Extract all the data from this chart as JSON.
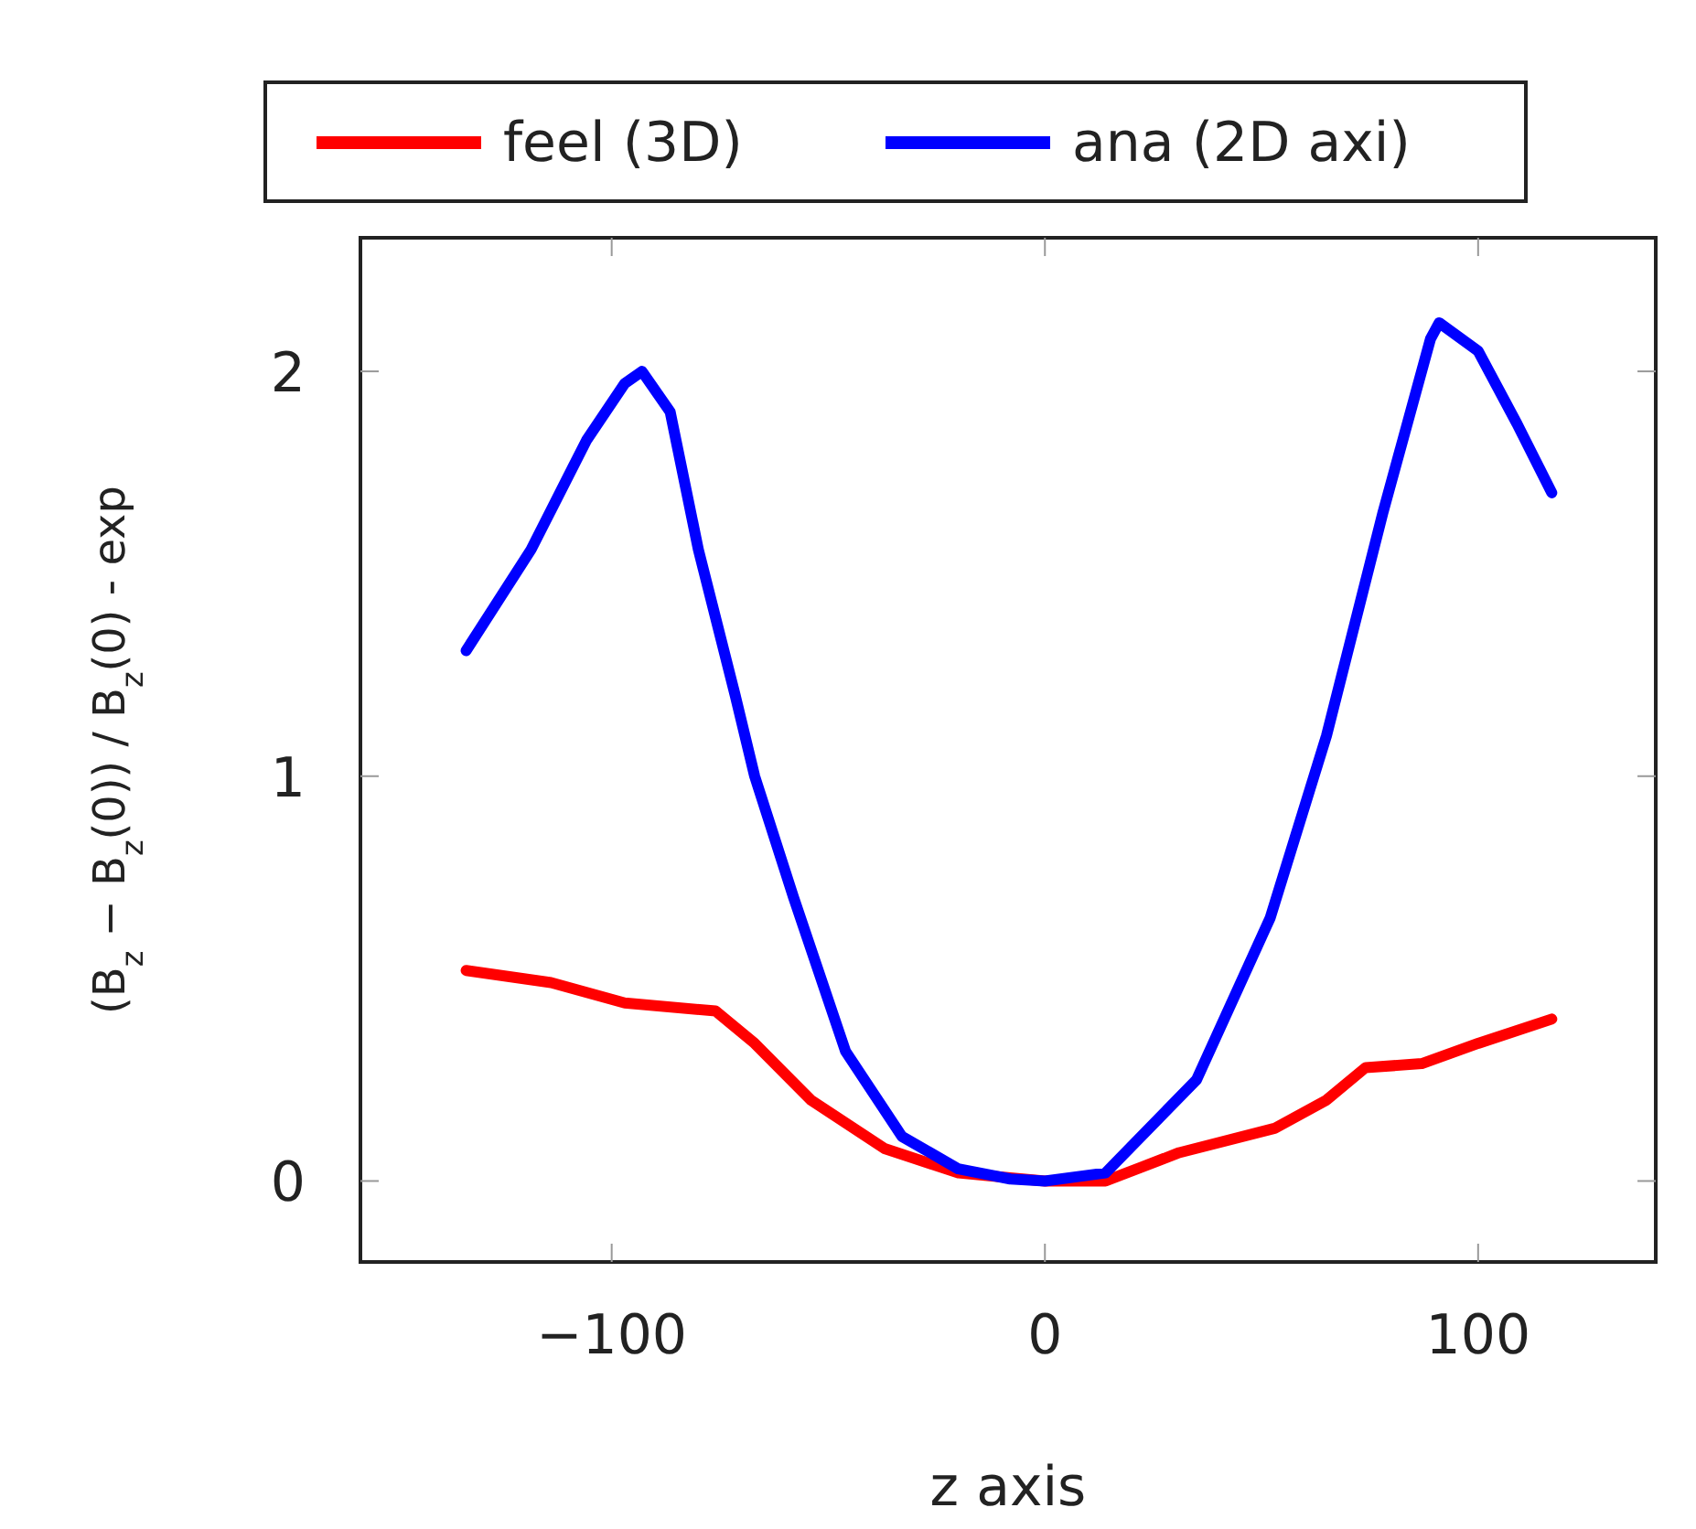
{
  "chart_data": {
    "type": "line",
    "xlabel": "z axis",
    "ylabel": "(B$_{z}$ − B$_{z}$(0)) / B$_{z}$(0) - exp",
    "xlim": [
      -158,
      141
    ],
    "ylim": [
      -0.2,
      2.33
    ],
    "xticks": [
      {
        "value": -100,
        "label": "−100"
      },
      0,
      100
    ],
    "yticks": [
      0,
      1,
      2
    ],
    "legend": "top",
    "marker": "none",
    "line_style": "solid",
    "series": [
      {
        "name": "feel (3D)",
        "color": "#ff0000",
        "x": [
          -133.6,
          -114,
          -97,
          -76,
          -67,
          -54,
          -37,
          -20,
          0,
          14,
          31,
          53,
          65,
          74,
          87,
          100,
          117
        ],
        "values": [
          0.52,
          0.49,
          0.44,
          0.42,
          0.34,
          0.2,
          0.08,
          0.02,
          0,
          0,
          0.07,
          0.13,
          0.2,
          0.28,
          0.29,
          0.34,
          0.4
        ]
      },
      {
        "name": "ana (2D axi)",
        "color": "#0000ff",
        "x": [
          -133.6,
          -118.6,
          -105.8,
          -97,
          -93,
          -86.5,
          -80,
          -71.5,
          -67,
          -58,
          -46,
          -33,
          -20,
          -8,
          0,
          14,
          35,
          52,
          65,
          78,
          89,
          91,
          100,
          109,
          117
        ],
        "values": [
          1.31,
          1.56,
          1.83,
          1.97,
          2.0,
          1.9,
          1.56,
          1.2,
          1.0,
          0.7,
          0.32,
          0.11,
          0.03,
          0.005,
          0,
          0.02,
          0.25,
          0.65,
          1.1,
          1.65,
          2.08,
          2.12,
          2.05,
          1.87,
          1.7
        ]
      }
    ]
  }
}
